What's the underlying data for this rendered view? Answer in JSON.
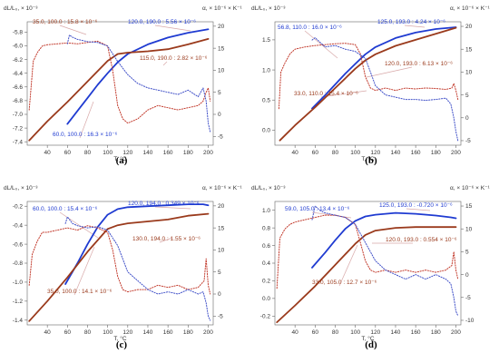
{
  "figure": {
    "panel_letters": [
      "(a)",
      "(b)",
      "(c)",
      "(d)"
    ]
  },
  "colors": {
    "blue": "#1f3bd1",
    "brown": "#9a3a1c",
    "red_dotted": "#c23a2c",
    "blue_dotted": "#4050c8",
    "leader": "#d8a8a8",
    "axis": "#666666"
  },
  "chart_data": [
    {
      "type": "line",
      "panel": "(a)",
      "xlabel": "T, °C",
      "ylabel_left": "dL/L₀, × 10⁻³",
      "ylabel_right": "α, × 10⁻⁶ × K⁻¹",
      "xlim": [
        20,
        205
      ],
      "ylim_left": [
        -7.45,
        -5.65
      ],
      "ylim_right": [
        -7,
        21
      ],
      "xticks": [
        40,
        60,
        80,
        100,
        120,
        140,
        160,
        180,
        200
      ],
      "yticks_left": [
        -7.4,
        -7.2,
        -7.0,
        -6.8,
        -6.6,
        -6.4,
        -6.2,
        -6.0,
        -5.8
      ],
      "yticks_right": [
        -5,
        0,
        5,
        10,
        15,
        20
      ],
      "annotations": [
        {
          "text": "35.0, 100.0 : 15.8 × 10⁻⁶",
          "color": "red"
        },
        {
          "text": "120.0, 190.0 : 5.56 × 10⁻⁶",
          "color": "blue"
        },
        {
          "text": "115.0, 190.0 : 2.82 × 10⁻⁶",
          "color": "red"
        },
        {
          "text": "60.0, 100.0 : 16.3 × 10⁻⁶",
          "color": "blue"
        }
      ],
      "series": [
        {
          "axis": "left",
          "style": "solid",
          "color": "blue",
          "x": [
            60,
            70,
            80,
            90,
            100,
            110,
            120,
            140,
            160,
            180,
            200
          ],
          "y": [
            -7.14,
            -6.95,
            -6.76,
            -6.57,
            -6.4,
            -6.24,
            -6.12,
            -5.98,
            -5.88,
            -5.81,
            -5.76
          ]
        },
        {
          "axis": "left",
          "style": "solid",
          "color": "brown",
          "x": [
            22,
            40,
            60,
            80,
            100,
            110,
            120,
            140,
            160,
            180,
            200
          ],
          "y": [
            -7.38,
            -7.1,
            -6.82,
            -6.52,
            -6.22,
            -6.12,
            -6.1,
            -6.08,
            -6.05,
            -5.98,
            -5.9
          ]
        },
        {
          "axis": "right",
          "style": "dotted",
          "color": "red",
          "x": [
            22,
            26,
            30,
            35,
            40,
            50,
            60,
            70,
            80,
            90,
            100,
            105,
            110,
            115,
            120,
            130,
            140,
            150,
            160,
            170,
            180,
            190,
            195,
            198,
            200,
            202
          ],
          "y": [
            1,
            12,
            14,
            15.5,
            15.8,
            16,
            16.2,
            16,
            16.3,
            16.6,
            15.5,
            10,
            2,
            -1,
            -2,
            -1,
            1,
            2,
            1.5,
            1,
            1.5,
            2,
            3,
            5,
            6,
            3
          ]
        },
        {
          "axis": "right",
          "style": "dotted",
          "color": "blue",
          "x": [
            60,
            62,
            65,
            70,
            80,
            90,
            100,
            110,
            120,
            130,
            140,
            150,
            160,
            170,
            180,
            190,
            195,
            198,
            200,
            202
          ],
          "y": [
            16,
            18,
            17.5,
            17,
            16.5,
            16.3,
            15.5,
            12,
            9,
            7,
            6,
            5.5,
            5,
            4.5,
            5.5,
            4,
            6,
            3,
            -2,
            -4
          ]
        }
      ]
    },
    {
      "type": "line",
      "panel": "(b)",
      "xlabel": "T, °C",
      "ylabel_left": "dL/L₀, × 10⁻³",
      "ylabel_right": "α, × 10⁻⁶ × K⁻¹",
      "xlim": [
        20,
        205
      ],
      "ylim_left": [
        -0.25,
        1.8
      ],
      "ylim_right": [
        -6,
        21
      ],
      "xticks": [
        40,
        60,
        80,
        100,
        120,
        140,
        160,
        180,
        200
      ],
      "yticks_left": [
        0.0,
        0.5,
        1.0,
        1.5
      ],
      "yticks_right": [
        -5,
        0,
        5,
        10,
        15,
        20
      ],
      "annotations": [
        {
          "text": "56.8, 110.0 : 16.0 × 10⁻⁶",
          "color": "blue"
        },
        {
          "text": "125.0, 193.0 : 4.24 × 10⁻⁶",
          "color": "blue"
        },
        {
          "text": "120.0, 193.0 : 6.13 × 10⁻⁶",
          "color": "red"
        },
        {
          "text": "33.0, 110.0 : 15.4 × 10⁻⁶",
          "color": "red"
        }
      ],
      "series": [
        {
          "axis": "left",
          "style": "solid",
          "color": "blue",
          "x": [
            57,
            70,
            80,
            90,
            100,
            110,
            120,
            140,
            160,
            180,
            200
          ],
          "y": [
            0.36,
            0.58,
            0.76,
            0.94,
            1.1,
            1.26,
            1.38,
            1.53,
            1.62,
            1.68,
            1.71
          ]
        },
        {
          "axis": "left",
          "style": "solid",
          "color": "brown",
          "x": [
            25,
            40,
            60,
            80,
            100,
            110,
            120,
            140,
            160,
            180,
            200
          ],
          "y": [
            -0.17,
            0.08,
            0.38,
            0.7,
            1.02,
            1.16,
            1.26,
            1.4,
            1.5,
            1.6,
            1.7
          ]
        },
        {
          "axis": "right",
          "style": "dotted",
          "color": "red",
          "x": [
            24,
            26,
            30,
            35,
            40,
            50,
            60,
            70,
            80,
            90,
            100,
            105,
            110,
            115,
            120,
            130,
            140,
            150,
            160,
            170,
            180,
            190,
            196,
            198,
            200,
            202
          ],
          "y": [
            2,
            10,
            12,
            14,
            15,
            15.5,
            15.8,
            16,
            16.2,
            16.3,
            16,
            14,
            9,
            6.5,
            6,
            6.5,
            6,
            6.5,
            6.3,
            6.5,
            6.4,
            6.2,
            6.5,
            7.5,
            6,
            4
          ]
        },
        {
          "axis": "right",
          "style": "dotted",
          "color": "blue",
          "x": [
            57,
            60,
            65,
            70,
            80,
            90,
            100,
            110,
            115,
            120,
            130,
            140,
            150,
            160,
            170,
            180,
            190,
            195,
            198,
            200,
            202
          ],
          "y": [
            17,
            17.5,
            16.5,
            15.5,
            15.8,
            15,
            14.5,
            13,
            10,
            7,
            5,
            4.5,
            4,
            4,
            3.8,
            4,
            4.3,
            3,
            0,
            -3,
            -5
          ]
        }
      ]
    },
    {
      "type": "line",
      "panel": "(c)",
      "xlabel": "T, °C",
      "ylabel_left": "dL/L₀, × 10⁻³",
      "ylabel_right": "α, × 10⁻⁶ × K⁻¹",
      "xlim": [
        20,
        205
      ],
      "ylim_left": [
        -1.45,
        -0.15
      ],
      "ylim_right": [
        -7,
        21
      ],
      "xticks": [
        40,
        60,
        80,
        100,
        120,
        140,
        160,
        180,
        200
      ],
      "yticks_left": [
        -1.4,
        -1.2,
        -1.0,
        -0.8,
        -0.6,
        -0.4,
        -0.2
      ],
      "yticks_right": [
        -5,
        0,
        5,
        10,
        15,
        20
      ],
      "annotations": [
        {
          "text": "60.0, 100.0 : 15.4 × 10⁻⁶",
          "color": "blue"
        },
        {
          "text": "120.0, 194.0 : 0.349 × 10⁻⁶",
          "color": "blue"
        },
        {
          "text": "130.0, 194.0 : 1.55 × 10⁻⁶",
          "color": "red"
        },
        {
          "text": "35.0, 100.0 : 14.1 × 10⁻⁶",
          "color": "red"
        }
      ],
      "series": [
        {
          "axis": "left",
          "style": "solid",
          "color": "blue",
          "x": [
            58,
            70,
            80,
            90,
            100,
            110,
            120,
            140,
            160,
            180,
            195,
            200
          ],
          "y": [
            -1.02,
            -0.8,
            -0.6,
            -0.42,
            -0.29,
            -0.23,
            -0.21,
            -0.2,
            -0.19,
            -0.18,
            -0.18,
            -0.19
          ]
        },
        {
          "axis": "left",
          "style": "solid",
          "color": "brown",
          "x": [
            22,
            40,
            60,
            80,
            100,
            110,
            120,
            140,
            160,
            180,
            200
          ],
          "y": [
            -1.41,
            -1.2,
            -0.95,
            -0.68,
            -0.44,
            -0.4,
            -0.38,
            -0.36,
            -0.34,
            -0.3,
            -0.28
          ]
        },
        {
          "axis": "right",
          "style": "dotted",
          "color": "red",
          "x": [
            22,
            25,
            30,
            35,
            40,
            50,
            60,
            70,
            80,
            90,
            100,
            105,
            110,
            115,
            120,
            130,
            140,
            150,
            160,
            170,
            180,
            190,
            196,
            198,
            200,
            202
          ],
          "y": [
            2,
            9,
            12,
            14,
            14,
            14.5,
            15,
            14.5,
            15.5,
            15,
            14,
            10,
            4,
            1,
            0.5,
            1,
            1,
            2,
            1.5,
            2,
            1,
            1.5,
            3,
            8,
            2,
            0
          ]
        },
        {
          "axis": "right",
          "style": "dotted",
          "color": "blue",
          "x": [
            58,
            60,
            65,
            70,
            80,
            90,
            100,
            110,
            120,
            130,
            140,
            150,
            160,
            170,
            180,
            190,
            195,
            198,
            200,
            202
          ],
          "y": [
            16,
            17.5,
            16,
            15.5,
            15,
            15.3,
            14.5,
            11,
            5,
            3,
            1,
            0,
            0.5,
            0,
            1,
            0,
            0.5,
            -2,
            -5,
            -6
          ]
        }
      ]
    },
    {
      "type": "line",
      "panel": "(d)",
      "xlabel": "T, °C",
      "ylabel_left": "dL/L₀, × 10⁻³",
      "ylabel_right": "α, × 10⁻⁶ × K⁻¹",
      "xlim": [
        20,
        205
      ],
      "ylim_left": [
        -0.3,
        1.1
      ],
      "ylim_right": [
        -11,
        16
      ],
      "xticks": [
        40,
        60,
        80,
        100,
        120,
        140,
        160,
        180,
        200
      ],
      "yticks_left": [
        -0.2,
        0.0,
        0.2,
        0.4,
        0.6,
        0.8,
        1.0
      ],
      "yticks_right": [
        -10,
        -5,
        0,
        5,
        10,
        15
      ],
      "annotations": [
        {
          "text": "59.0, 105.0 : 13.4 × 10⁻⁶",
          "color": "blue"
        },
        {
          "text": "125.0, 193.0 : -0.720 × 10⁻⁶",
          "color": "blue"
        },
        {
          "text": "120.0, 193.0 : 0.554 × 10⁻⁶",
          "color": "red"
        },
        {
          "text": "33.0, 105.0 : 12.7 × 10⁻⁶",
          "color": "red"
        }
      ],
      "series": [
        {
          "axis": "left",
          "style": "solid",
          "color": "blue",
          "x": [
            57,
            70,
            80,
            90,
            100,
            110,
            120,
            140,
            160,
            180,
            195,
            200
          ],
          "y": [
            0.35,
            0.52,
            0.66,
            0.79,
            0.88,
            0.93,
            0.95,
            0.97,
            0.96,
            0.94,
            0.92,
            0.91
          ]
        },
        {
          "axis": "left",
          "style": "solid",
          "color": "brown",
          "x": [
            22,
            40,
            60,
            80,
            100,
            110,
            120,
            140,
            160,
            180,
            200
          ],
          "y": [
            -0.27,
            -0.08,
            0.14,
            0.38,
            0.62,
            0.72,
            0.77,
            0.8,
            0.81,
            0.81,
            0.81
          ]
        },
        {
          "axis": "right",
          "style": "dotted",
          "color": "red",
          "x": [
            22,
            25,
            30,
            35,
            40,
            50,
            60,
            70,
            80,
            90,
            100,
            105,
            110,
            115,
            120,
            130,
            140,
            150,
            160,
            170,
            180,
            190,
            196,
            198,
            200,
            202
          ],
          "y": [
            -3,
            8,
            10,
            11,
            11.5,
            12,
            12.5,
            13,
            13,
            12.5,
            11,
            7,
            3,
            1,
            0.5,
            1,
            0.5,
            1,
            0.5,
            1,
            0.5,
            1,
            2,
            5,
            1,
            -1
          ]
        },
        {
          "axis": "right",
          "style": "dotted",
          "color": "blue",
          "x": [
            57,
            60,
            65,
            70,
            80,
            90,
            100,
            110,
            120,
            130,
            140,
            150,
            160,
            170,
            180,
            190,
            195,
            198,
            200,
            202
          ],
          "y": [
            12,
            15,
            14,
            13.5,
            13,
            12.5,
            11,
            7,
            3,
            1,
            0,
            -1,
            0,
            -1,
            0,
            -1,
            -2,
            -5,
            -8,
            -9
          ]
        }
      ]
    }
  ]
}
